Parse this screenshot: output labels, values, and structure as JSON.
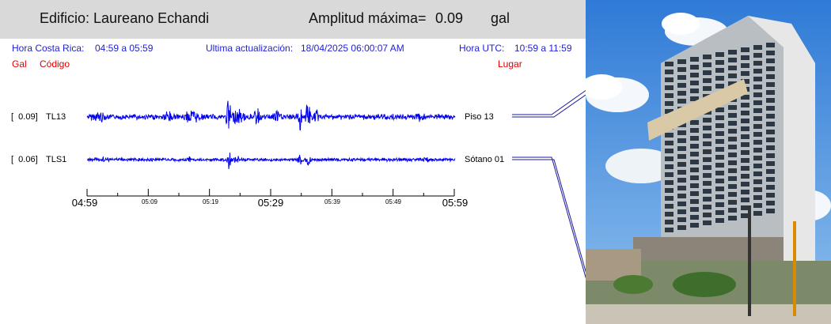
{
  "header": {
    "building_label": "Edificio: Laureano Echandi",
    "max_amp_label": "Amplitud máxima=",
    "max_amp_value": "0.09",
    "max_amp_unit": "gal"
  },
  "info": {
    "cr_time_label": "Hora Costa Rica:",
    "cr_time_range": "04:59 a 05:59",
    "update_label": "Ultima actualización:",
    "update_value": "18/04/2025 06:00:07 AM",
    "utc_label": "Hora UTC:",
    "utc_range": "10:59 a 11:59",
    "col_gal": "Gal",
    "col_code": "Código",
    "col_place": "Lugar"
  },
  "channels": [
    {
      "gal": "0.09",
      "code": "TL13",
      "place": "Piso 13",
      "amplitude": 0.09
    },
    {
      "gal": "0.06",
      "code": "TLS1",
      "place": "Sótano 01",
      "amplitude": 0.06
    }
  ],
  "axis": {
    "major_labels": [
      "04:59",
      "05:29",
      "05:59"
    ],
    "minor_labels": [
      "05:09",
      "05:19",
      "05:39",
      "05:49"
    ]
  },
  "colors": {
    "trace": "#0000ee",
    "info_blue": "#1f1fd6",
    "column_red": "#e00000",
    "header_bg": "#d9d9d9"
  }
}
